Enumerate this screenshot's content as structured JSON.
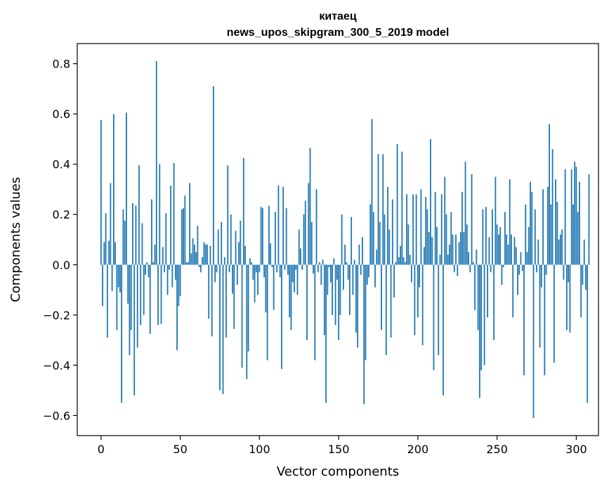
{
  "chart_data": {
    "type": "bar",
    "title": "китаец",
    "subtitle": "news_upos_skipgram_300_5_2019 model",
    "xlabel": "Vector components",
    "ylabel": "Components values",
    "xlim": [
      -15,
      314
    ],
    "ylim": [
      -0.68,
      0.88
    ],
    "xticks": [
      0,
      50,
      100,
      150,
      200,
      250,
      300
    ],
    "yticks": [
      -0.6,
      -0.4,
      -0.2,
      0.0,
      0.2,
      0.4,
      0.6,
      0.8
    ],
    "xtick_labels": [
      "0",
      "50",
      "100",
      "150",
      "200",
      "250",
      "300"
    ],
    "ytick_labels": [
      "−0.6",
      "−0.4",
      "−0.2",
      "0.0",
      "0.2",
      "0.4",
      "0.6",
      "0.8"
    ],
    "grid": false,
    "bar_color": "#1f77b4",
    "values": [
      0.575,
      -0.165,
      0.09,
      0.205,
      -0.29,
      0.095,
      0.325,
      -0.105,
      0.6,
      0.09,
      -0.26,
      -0.09,
      -0.11,
      -0.55,
      0.22,
      0.175,
      0.605,
      -0.155,
      -0.36,
      -0.26,
      0.245,
      -0.52,
      0.235,
      -0.33,
      0.395,
      -0.24,
      0.165,
      -0.2,
      -0.04,
      0.01,
      -0.05,
      -0.275,
      0.26,
      0.01,
      0.08,
      0.81,
      -0.24,
      0.4,
      -0.235,
      0.07,
      -0.03,
      0.205,
      -0.12,
      -0.02,
      0.315,
      -0.09,
      0.405,
      -0.06,
      -0.34,
      -0.165,
      -0.125,
      0.22,
      0.225,
      0.275,
      0.01,
      0.01,
      0.325,
      0.045,
      0.105,
      0.08,
      0.05,
      0.155,
      -0.01,
      -0.03,
      0.03,
      0.09,
      0.08,
      0.08,
      -0.215,
      0.075,
      -0.285,
      0.71,
      -0.07,
      -0.03,
      0.14,
      -0.5,
      0.17,
      -0.515,
      0.03,
      -0.29,
      0.395,
      -0.03,
      0.2,
      -0.115,
      -0.255,
      0.135,
      -0.08,
      0.09,
      0.175,
      -0.41,
      0.425,
      0.075,
      -0.455,
      -0.345,
      0.025,
      0.01,
      -0.06,
      -0.15,
      -0.03,
      -0.12,
      -0.03,
      0.23,
      0.225,
      -0.05,
      -0.19,
      -0.38,
      0.235,
      0.085,
      -0.01,
      -0.18,
      0.21,
      -0.03,
      0.315,
      -0.05,
      -0.415,
      0.31,
      -0.02,
      0.225,
      -0.04,
      -0.21,
      -0.26,
      -0.07,
      -0.11,
      -0.02,
      -0.12,
      0.14,
      0.065,
      -0.02,
      0.2,
      0.255,
      -0.3,
      0.325,
      0.465,
      0.17,
      -0.035,
      -0.38,
      0.3,
      -0.03,
      0.01,
      -0.08,
      0.02,
      -0.28,
      -0.55,
      -0.12,
      -0.01,
      -0.07,
      -0.2,
      0.025,
      -0.24,
      -0.06,
      -0.3,
      -0.2,
      0.2,
      -0.1,
      0.08,
      0.01,
      -0.06,
      -0.2,
      0.19,
      -0.12,
      0.02,
      -0.27,
      -0.33,
      0.08,
      -0.04,
      0.11,
      -0.555,
      -0.38,
      -0.08,
      -0.05,
      0.24,
      0.58,
      0.21,
      -0.09,
      0.06,
      0.44,
      0.17,
      -0.26,
      0.44,
      0.2,
      -0.36,
      0.31,
      0.14,
      -0.29,
      0.26,
      -0.13,
      0.01,
      0.48,
      0.03,
      0.075,
      0.45,
      0.03,
      0.01,
      0.28,
      0.16,
      0.04,
      -0.07,
      0.28,
      -0.28,
      0.28,
      -0.21,
      -0.09,
      0.3,
      -0.32,
      0.07,
      0.27,
      0.22,
      0.13,
      0.5,
      0.11,
      -0.42,
      0.29,
      0.15,
      -0.36,
      0.04,
      0.28,
      -0.52,
      0.35,
      0.2,
      0.04,
      0.08,
      0.21,
      0.12,
      -0.03,
      0.12,
      -0.045,
      0.09,
      0.13,
      0.29,
      0.13,
      0.41,
      0.16,
      0.05,
      -0.03,
      0.36,
      0.01,
      -0.18,
      0.06,
      -0.26,
      -0.53,
      -0.42,
      0.22,
      -0.4,
      0.23,
      -0.21,
      0.11,
      -0.03,
      0.22,
      -0.3,
      0.35,
      0.16,
      0.12,
      0.15,
      -0.08,
      -0.01,
      0.21,
      0.12,
      0.08,
      0.34,
      0.12,
      -0.21,
      0.11,
      0.07,
      -0.12,
      -0.04,
      0.05,
      -0.025,
      -0.44,
      0.24,
      0.05,
      0.15,
      0.33,
      0.29,
      -0.61,
      0.22,
      -0.03,
      0.1,
      -0.33,
      -0.09,
      0.3,
      -0.44,
      -0.04,
      0.31,
      0.56,
      0.24,
      0.46,
      -0.39,
      0.34,
      0.25,
      0.1,
      0.12,
      0.14,
      -0.06,
      0.38,
      -0.26,
      -0.07,
      -0.27,
      0.38,
      0.24,
      0.41,
      0.39,
      0.21,
      0.33,
      -0.21,
      -0.08,
      0.1,
      -0.1,
      -0.55,
      0.36
    ]
  }
}
